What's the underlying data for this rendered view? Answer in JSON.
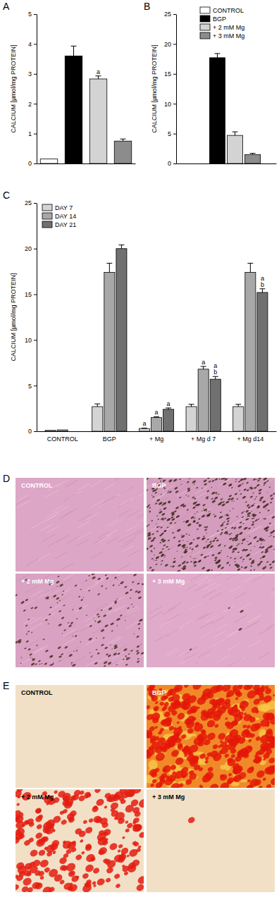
{
  "chart_data": [
    {
      "type": "bar",
      "title": "A",
      "y_label": "CALCIUM [µmol/mg PROTEIN]",
      "categories": [
        null,
        null,
        null,
        null
      ],
      "values": [
        0.15,
        3.6,
        2.83,
        0.75
      ],
      "errors": [
        null,
        0.33,
        0.1,
        0.07
      ],
      "colors": [
        "#ffffff",
        "#000000",
        "#d3d3d3",
        "#8c8c8c"
      ],
      "annotations": [
        null,
        null,
        [
          "a"
        ],
        null
      ],
      "ylim": [
        0,
        5
      ],
      "yticks": [
        0,
        1,
        2,
        3,
        4,
        5
      ],
      "tick_labels": "y"
    },
    {
      "type": "bar",
      "title": "B",
      "y_label": "CALCIUM [µmol/mg PROTEIN]",
      "categories": [
        null
      ],
      "series": [
        {
          "name": "CONTROL",
          "color": "#ffffff",
          "values": [
            null
          ]
        },
        {
          "name": "BGP",
          "color": "#000000",
          "values": [
            17.7
          ],
          "errors": [
            0.7
          ]
        },
        {
          "name": "+ 2 mM Mg",
          "color": "#d3d3d3",
          "values": [
            4.7
          ],
          "errors": [
            0.6
          ]
        },
        {
          "name": "+ 3 mM Mg",
          "color": "#8c8c8c",
          "values": [
            1.5
          ],
          "errors": [
            0.2
          ]
        }
      ],
      "ylim": [
        0,
        25
      ],
      "yticks": [
        0,
        5,
        10,
        15,
        20,
        25
      ],
      "legend": "upper right",
      "tick_labels": "y"
    },
    {
      "type": "bar",
      "title": "C",
      "y_label": "CALCIUM [µmol/mg PROTEIN]",
      "categories": [
        "CONTROL",
        "BGP",
        "+ Mg",
        "+ Mg d 7",
        "+ Mg d14"
      ],
      "series": [
        {
          "name": "DAY 7",
          "color": "#d4d4d4",
          "values": [
            0.1,
            2.7,
            0.3,
            2.7,
            2.7
          ],
          "errors": [
            null,
            0.3,
            0.05,
            0.25,
            0.25
          ],
          "annotations": [
            null,
            null,
            [
              "a"
            ],
            null,
            null
          ]
        },
        {
          "name": "DAY 14",
          "color": "#a8a8a8",
          "values": [
            0.15,
            17.4,
            1.5,
            6.8,
            17.4
          ],
          "errors": [
            null,
            1.0,
            0.1,
            0.3,
            1.0
          ],
          "annotations": [
            null,
            null,
            [
              "a"
            ],
            [
              "a"
            ],
            null
          ]
        },
        {
          "name": "DAY 21",
          "color": "#707070",
          "values": [
            null,
            20.0,
            2.4,
            5.7,
            15.2
          ],
          "errors": [
            null,
            0.4,
            0.15,
            0.3,
            0.4
          ],
          "annotations": [
            null,
            null,
            [
              "a"
            ],
            [
              "a",
              "b"
            ],
            [
              "a",
              "b"
            ]
          ]
        }
      ],
      "ylim": [
        0,
        25
      ],
      "yticks": [
        0,
        5,
        10,
        15,
        20,
        25
      ],
      "legend": "upper left"
    }
  ],
  "panels": [
    {
      "title": "D",
      "images": [
        "CONTROL",
        "BGP",
        "+ 2 mM Mg",
        "+ 3 mM Mg"
      ]
    },
    {
      "title": "E",
      "images": [
        "CONTROL",
        "BGP",
        "+ 2 mM Mg",
        "+ 3 mM Mg"
      ]
    }
  ]
}
